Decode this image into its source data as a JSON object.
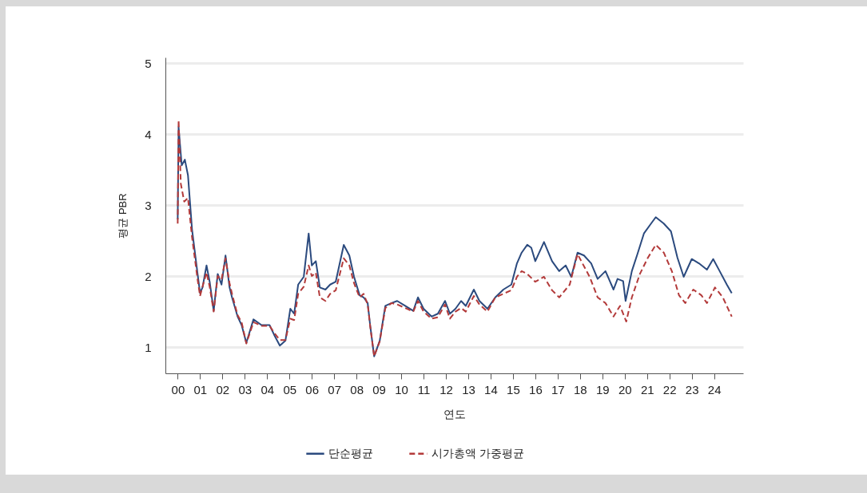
{
  "chart_data": {
    "type": "line",
    "xlabel": "연도",
    "ylabel": "평균 PBR",
    "xlim": [
      1999.45,
      2025.3
    ],
    "ylim": [
      0.63,
      5.08
    ],
    "xticks": [
      {
        "value": 2000,
        "label": "00"
      },
      {
        "value": 2001,
        "label": "01"
      },
      {
        "value": 2002,
        "label": "02"
      },
      {
        "value": 2003,
        "label": "03"
      },
      {
        "value": 2004,
        "label": "04"
      },
      {
        "value": 2005,
        "label": "05"
      },
      {
        "value": 2006,
        "label": "06"
      },
      {
        "value": 2007,
        "label": "07"
      },
      {
        "value": 2008,
        "label": "08"
      },
      {
        "value": 2009,
        "label": "09"
      },
      {
        "value": 2010,
        "label": "10"
      },
      {
        "value": 2011,
        "label": "11"
      },
      {
        "value": 2012,
        "label": "12"
      },
      {
        "value": 2013,
        "label": "13"
      },
      {
        "value": 2014,
        "label": "14"
      },
      {
        "value": 2015,
        "label": "15"
      },
      {
        "value": 2016,
        "label": "16"
      },
      {
        "value": 2017,
        "label": "17"
      },
      {
        "value": 2018,
        "label": "18"
      },
      {
        "value": 2019,
        "label": "19"
      },
      {
        "value": 2020,
        "label": "20"
      },
      {
        "value": 2021,
        "label": "21"
      },
      {
        "value": 2022,
        "label": "22"
      },
      {
        "value": 2023,
        "label": "23"
      },
      {
        "value": 2024,
        "label": "24"
      }
    ],
    "yticks": [
      1,
      2,
      3,
      4,
      5
    ],
    "grid": "y",
    "legend": "bottom",
    "marker": "none",
    "series": [
      {
        "name": "단순평균",
        "color": "#2b4a7e",
        "line_style": "solid",
        "x": [
          2000.0,
          2000.04,
          2000.18,
          2000.32,
          2000.46,
          2000.64,
          2000.89,
          2001.0,
          2001.11,
          2001.29,
          2001.43,
          2001.61,
          2001.79,
          2001.96,
          2002.14,
          2002.32,
          2002.43,
          2002.68,
          2002.86,
          2003.07,
          2003.39,
          2003.75,
          2004.11,
          2004.32,
          2004.57,
          2004.82,
          2005.04,
          2005.21,
          2005.39,
          2005.64,
          2005.86,
          2006.0,
          2006.18,
          2006.36,
          2006.61,
          2006.82,
          2007.07,
          2007.43,
          2007.68,
          2007.89,
          2008.14,
          2008.32,
          2008.5,
          2008.61,
          2008.79,
          2009.04,
          2009.29,
          2009.57,
          2009.82,
          2010.18,
          2010.54,
          2010.75,
          2011.0,
          2011.36,
          2011.64,
          2011.96,
          2012.18,
          2012.43,
          2012.68,
          2012.89,
          2013.25,
          2013.5,
          2013.86,
          2014.21,
          2014.57,
          2014.93,
          2015.18,
          2015.39,
          2015.64,
          2015.82,
          2016.0,
          2016.39,
          2016.75,
          2017.07,
          2017.36,
          2017.61,
          2017.89,
          2018.18,
          2018.5,
          2018.79,
          2019.14,
          2019.5,
          2019.68,
          2019.93,
          2020.04,
          2020.32,
          2020.57,
          2020.86,
          2021.18,
          2021.39,
          2021.75,
          2022.07,
          2022.36,
          2022.64,
          2023.0,
          2023.32,
          2023.68,
          2023.96,
          2024.25,
          2024.57,
          2024.79
        ],
        "values": [
          2.8,
          4.1,
          3.56,
          3.64,
          3.42,
          2.66,
          2.03,
          1.76,
          1.84,
          2.15,
          1.92,
          1.51,
          2.03,
          1.88,
          2.29,
          1.84,
          1.7,
          1.43,
          1.31,
          1.06,
          1.39,
          1.31,
          1.31,
          1.17,
          1.02,
          1.09,
          1.54,
          1.47,
          1.88,
          1.99,
          2.6,
          2.15,
          2.21,
          1.84,
          1.81,
          1.88,
          1.92,
          2.44,
          2.29,
          1.99,
          1.73,
          1.7,
          1.62,
          1.31,
          0.87,
          1.09,
          1.58,
          1.62,
          1.65,
          1.58,
          1.51,
          1.7,
          1.54,
          1.43,
          1.47,
          1.65,
          1.47,
          1.54,
          1.65,
          1.58,
          1.81,
          1.65,
          1.54,
          1.7,
          1.81,
          1.88,
          2.18,
          2.33,
          2.44,
          2.4,
          2.21,
          2.48,
          2.21,
          2.07,
          2.15,
          1.99,
          2.33,
          2.29,
          2.18,
          1.96,
          2.07,
          1.81,
          1.96,
          1.93,
          1.65,
          2.07,
          2.31,
          2.6,
          2.74,
          2.83,
          2.74,
          2.63,
          2.26,
          1.99,
          2.24,
          2.18,
          2.09,
          2.24,
          2.07,
          1.88,
          1.76
        ]
      },
      {
        "name": "시가총액 가중평균",
        "color": "#b33a3a",
        "line_style": "dashed",
        "x": [
          2000.0,
          2000.04,
          2000.14,
          2000.29,
          2000.46,
          2000.64,
          2000.89,
          2001.0,
          2001.11,
          2001.29,
          2001.43,
          2001.61,
          2001.79,
          2001.96,
          2002.14,
          2002.32,
          2002.43,
          2002.68,
          2002.86,
          2003.07,
          2003.39,
          2003.75,
          2004.11,
          2004.32,
          2004.57,
          2004.82,
          2005.04,
          2005.21,
          2005.39,
          2005.64,
          2005.86,
          2006.0,
          2006.18,
          2006.36,
          2006.61,
          2006.82,
          2007.07,
          2007.43,
          2007.68,
          2007.89,
          2008.14,
          2008.32,
          2008.5,
          2008.61,
          2008.79,
          2009.04,
          2009.29,
          2009.57,
          2009.82,
          2010.18,
          2010.54,
          2010.75,
          2011.0,
          2011.36,
          2011.64,
          2011.96,
          2012.18,
          2012.43,
          2012.68,
          2012.89,
          2013.25,
          2013.5,
          2013.86,
          2014.21,
          2014.57,
          2014.93,
          2015.18,
          2015.39,
          2015.64,
          2016.0,
          2016.39,
          2016.75,
          2017.07,
          2017.54,
          2017.89,
          2018.43,
          2018.79,
          2019.14,
          2019.5,
          2019.79,
          2020.07,
          2020.32,
          2020.68,
          2021.04,
          2021.39,
          2021.75,
          2022.11,
          2022.43,
          2022.71,
          2023.07,
          2023.43,
          2023.68,
          2024.04,
          2024.39,
          2024.79
        ],
        "values": [
          2.74,
          4.2,
          3.3,
          3.05,
          3.1,
          2.55,
          1.95,
          1.72,
          1.85,
          2.05,
          1.85,
          1.5,
          2.0,
          1.95,
          2.25,
          1.9,
          1.75,
          1.45,
          1.35,
          1.05,
          1.35,
          1.3,
          1.3,
          1.2,
          1.1,
          1.1,
          1.4,
          1.38,
          1.75,
          1.85,
          2.15,
          2.0,
          2.05,
          1.7,
          1.65,
          1.75,
          1.8,
          2.25,
          2.15,
          1.9,
          1.7,
          1.75,
          1.6,
          1.3,
          0.87,
          1.08,
          1.55,
          1.62,
          1.6,
          1.55,
          1.5,
          1.65,
          1.5,
          1.4,
          1.42,
          1.6,
          1.4,
          1.5,
          1.55,
          1.5,
          1.72,
          1.6,
          1.5,
          1.7,
          1.75,
          1.8,
          1.99,
          2.07,
          2.03,
          1.92,
          1.99,
          1.8,
          1.7,
          1.88,
          2.31,
          1.99,
          1.7,
          1.62,
          1.43,
          1.58,
          1.36,
          1.7,
          2.03,
          2.26,
          2.44,
          2.33,
          2.07,
          1.73,
          1.62,
          1.81,
          1.73,
          1.62,
          1.84,
          1.7,
          1.43
        ]
      }
    ]
  }
}
